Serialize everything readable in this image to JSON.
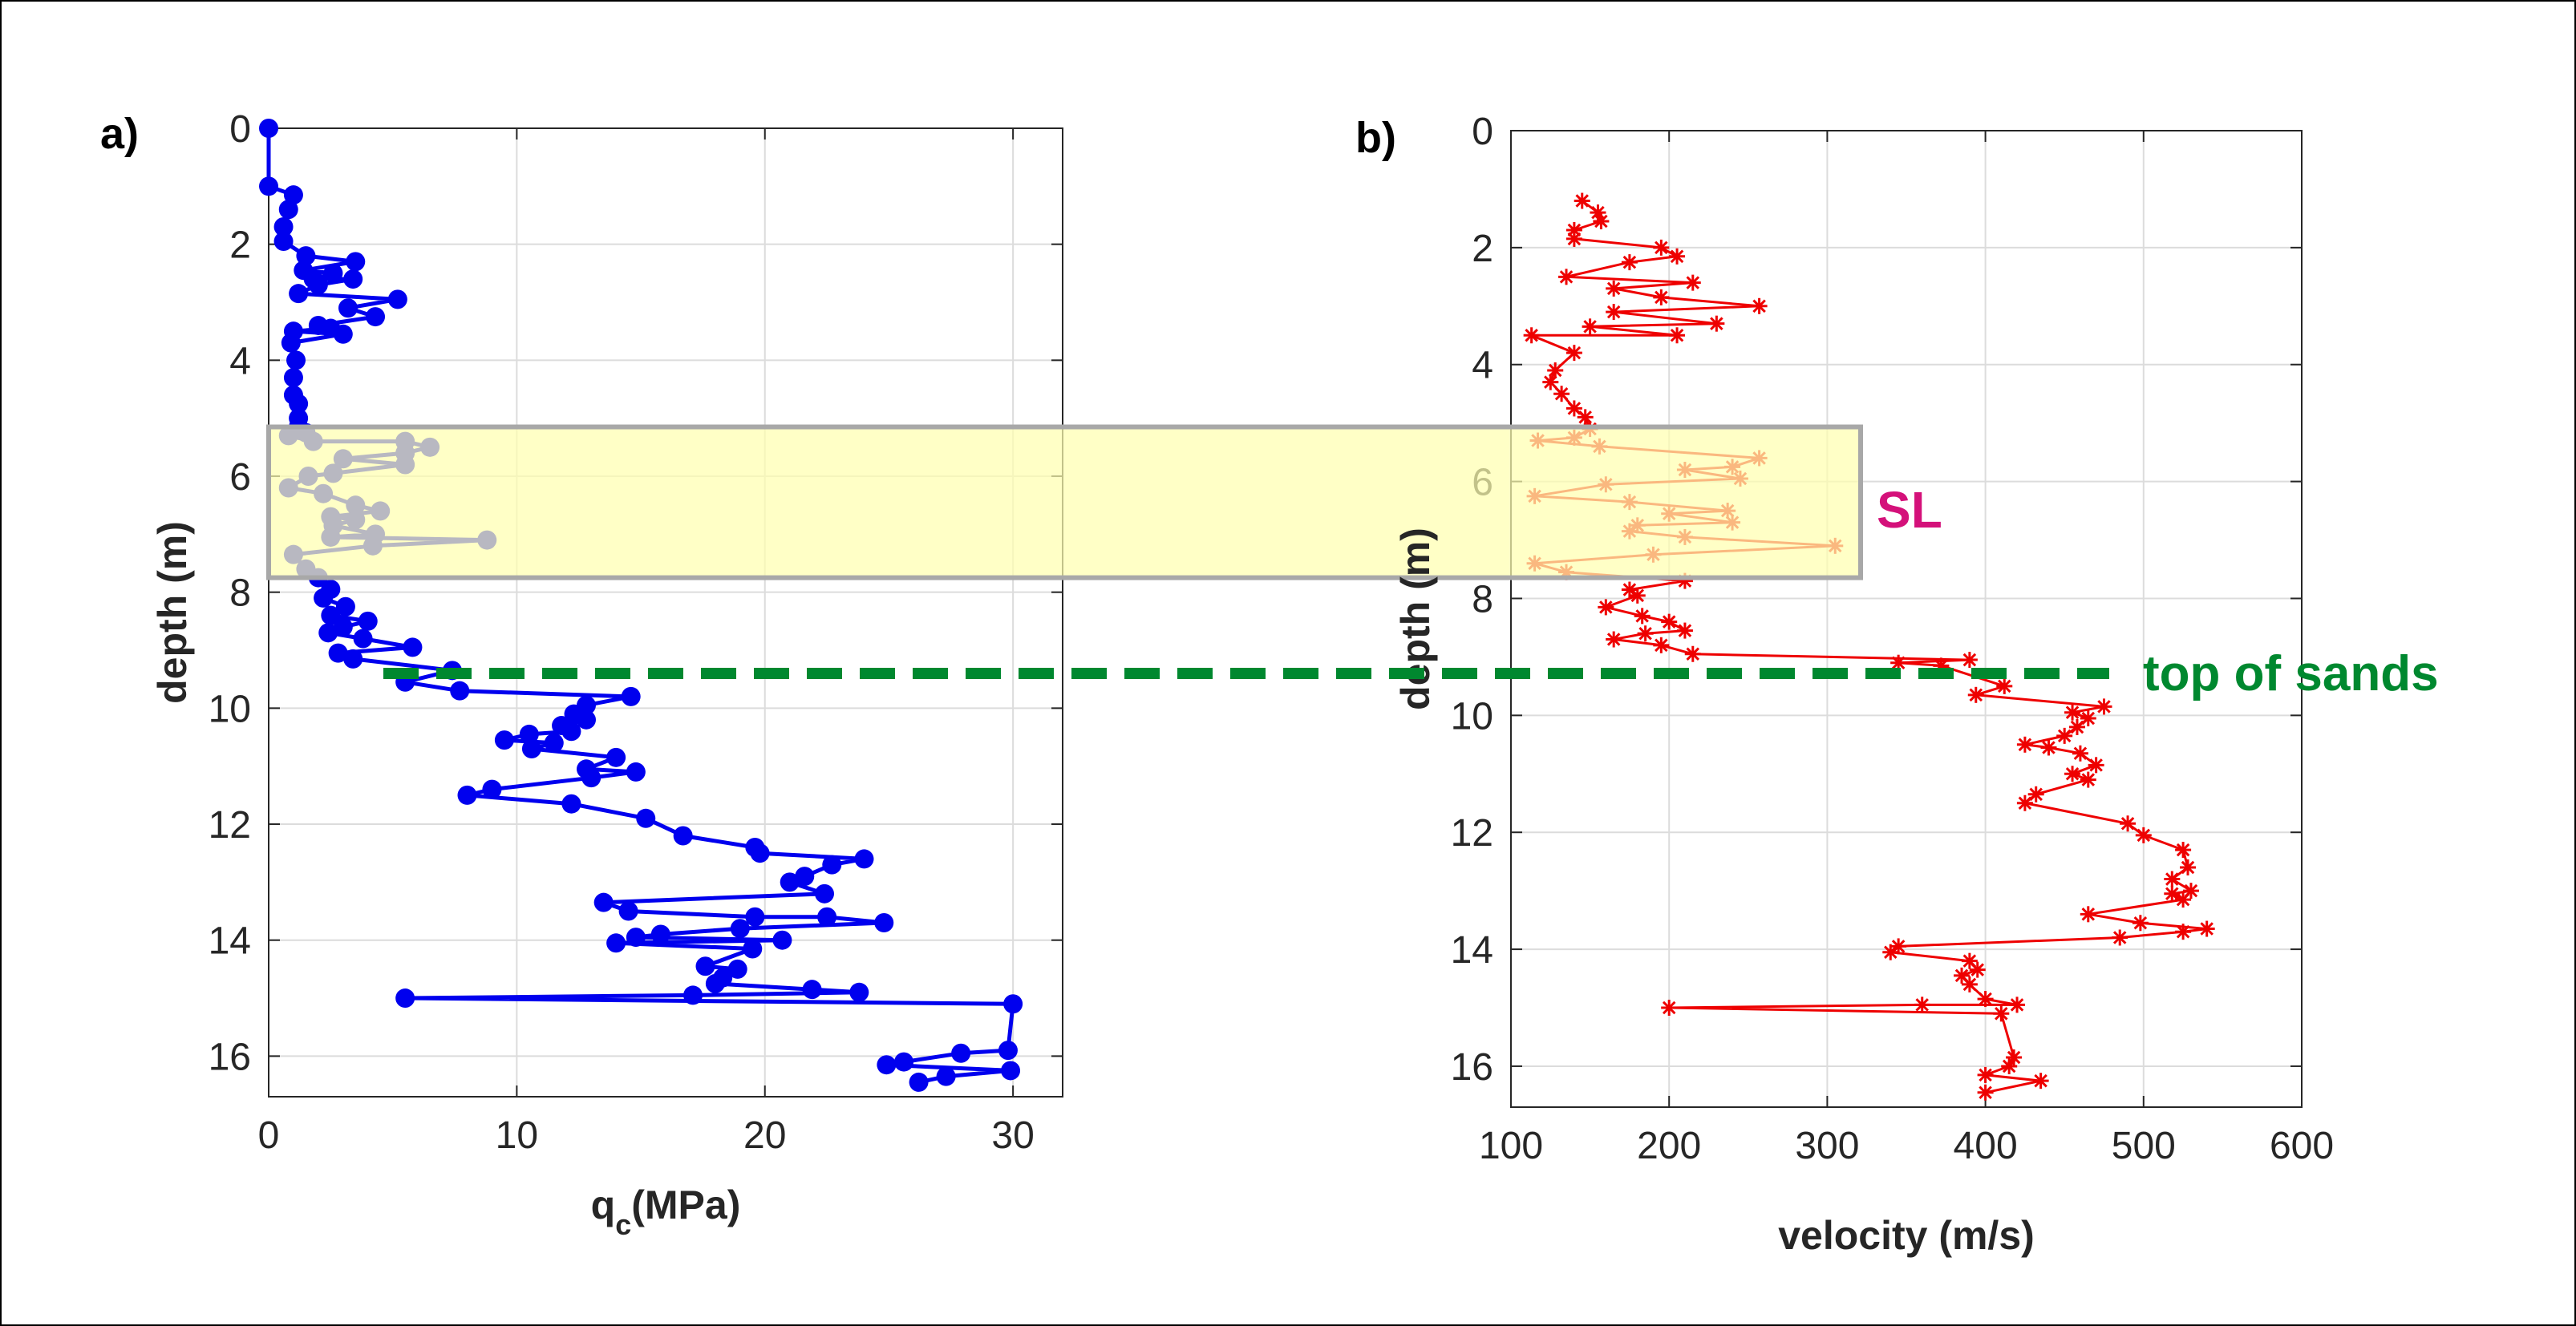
{
  "chart_data": [
    {
      "type": "line",
      "panel_label": "a)",
      "xlabel": "q",
      "xlabel_sub": "c",
      "xlabel_units": "(MPa)",
      "ylabel": "depth (m)",
      "xlim": [
        0,
        32
      ],
      "ylim": [
        0,
        16.7
      ],
      "y_reversed": true,
      "grid": true,
      "xticks": [
        0,
        10,
        20,
        30
      ],
      "yticks": [
        0,
        2,
        4,
        6,
        8,
        10,
        12,
        14,
        16
      ],
      "series": [
        {
          "color": "#0000ee",
          "marker": "circle",
          "points": [
            [
              0.0,
              0.0
            ],
            [
              0.0,
              1.0
            ],
            [
              1.0,
              1.15
            ],
            [
              0.8,
              1.4
            ],
            [
              0.6,
              1.7
            ],
            [
              0.6,
              1.95
            ],
            [
              1.5,
              2.2
            ],
            [
              3.5,
              2.3
            ],
            [
              1.4,
              2.45
            ],
            [
              2.6,
              2.5
            ],
            [
              1.8,
              2.6
            ],
            [
              3.4,
              2.6
            ],
            [
              2.0,
              2.7
            ],
            [
              1.2,
              2.85
            ],
            [
              5.2,
              2.95
            ],
            [
              3.2,
              3.1
            ],
            [
              4.3,
              3.25
            ],
            [
              2.0,
              3.4
            ],
            [
              2.5,
              3.45
            ],
            [
              1.0,
              3.5
            ],
            [
              3.0,
              3.55
            ],
            [
              0.9,
              3.7
            ],
            [
              1.1,
              4.0
            ],
            [
              1.0,
              4.3
            ],
            [
              1.0,
              4.6
            ],
            [
              1.2,
              4.75
            ],
            [
              1.2,
              5.0
            ],
            [
              1.2,
              5.15
            ],
            [
              1.5,
              5.25
            ],
            [
              0.8,
              5.3
            ],
            [
              1.8,
              5.4
            ],
            [
              5.5,
              5.4
            ],
            [
              6.5,
              5.5
            ],
            [
              5.5,
              5.6
            ],
            [
              3.0,
              5.7
            ],
            [
              5.5,
              5.8
            ],
            [
              2.6,
              5.95
            ],
            [
              1.6,
              6.0
            ],
            [
              0.8,
              6.2
            ],
            [
              2.2,
              6.3
            ],
            [
              3.5,
              6.5
            ],
            [
              4.5,
              6.6
            ],
            [
              2.5,
              6.7
            ],
            [
              3.5,
              6.75
            ],
            [
              2.6,
              6.85
            ],
            [
              4.3,
              7.0
            ],
            [
              2.5,
              7.05
            ],
            [
              8.8,
              7.1
            ],
            [
              4.2,
              7.2
            ],
            [
              1.0,
              7.35
            ],
            [
              1.5,
              7.6
            ],
            [
              2.0,
              7.75
            ],
            [
              2.5,
              7.95
            ],
            [
              2.2,
              8.1
            ],
            [
              3.1,
              8.25
            ],
            [
              2.5,
              8.4
            ],
            [
              4.0,
              8.5
            ],
            [
              3.0,
              8.6
            ],
            [
              2.4,
              8.7
            ],
            [
              3.8,
              8.8
            ],
            [
              5.8,
              8.95
            ],
            [
              2.8,
              9.05
            ],
            [
              3.4,
              9.15
            ],
            [
              7.4,
              9.35
            ],
            [
              5.5,
              9.55
            ],
            [
              7.7,
              9.7
            ],
            [
              14.6,
              9.8
            ],
            [
              12.8,
              9.95
            ],
            [
              12.3,
              10.1
            ],
            [
              12.8,
              10.2
            ],
            [
              11.8,
              10.3
            ],
            [
              12.2,
              10.4
            ],
            [
              10.5,
              10.45
            ],
            [
              9.5,
              10.55
            ],
            [
              11.5,
              10.6
            ],
            [
              10.6,
              10.7
            ],
            [
              14.0,
              10.85
            ],
            [
              12.8,
              11.05
            ],
            [
              14.8,
              11.1
            ],
            [
              13.0,
              11.2
            ],
            [
              9.0,
              11.4
            ],
            [
              8.0,
              11.5
            ],
            [
              12.2,
              11.65
            ],
            [
              15.2,
              11.9
            ],
            [
              16.7,
              12.2
            ],
            [
              19.6,
              12.4
            ],
            [
              19.8,
              12.5
            ],
            [
              24.0,
              12.6
            ],
            [
              22.7,
              12.7
            ],
            [
              21.6,
              12.9
            ],
            [
              21.0,
              13.0
            ],
            [
              22.4,
              13.2
            ],
            [
              13.5,
              13.35
            ],
            [
              14.5,
              13.5
            ],
            [
              19.6,
              13.6
            ],
            [
              22.5,
              13.6
            ],
            [
              24.8,
              13.7
            ],
            [
              19.0,
              13.8
            ],
            [
              15.8,
              13.9
            ],
            [
              14.8,
              13.95
            ],
            [
              20.7,
              14.0
            ],
            [
              14.0,
              14.05
            ],
            [
              19.5,
              14.15
            ],
            [
              17.6,
              14.45
            ],
            [
              18.9,
              14.5
            ],
            [
              18.3,
              14.65
            ],
            [
              18.0,
              14.75
            ],
            [
              21.9,
              14.85
            ],
            [
              23.8,
              14.9
            ],
            [
              17.1,
              14.95
            ],
            [
              5.5,
              15.0
            ],
            [
              30.0,
              15.1
            ],
            [
              29.8,
              15.9
            ],
            [
              27.9,
              15.95
            ],
            [
              25.6,
              16.1
            ],
            [
              24.9,
              16.15
            ],
            [
              29.9,
              16.25
            ],
            [
              27.3,
              16.35
            ],
            [
              26.2,
              16.45
            ]
          ]
        }
      ]
    },
    {
      "type": "line",
      "panel_label": "b)",
      "xlabel": "velocity (m/s)",
      "ylabel": "depth (m)",
      "xlim": [
        100,
        600
      ],
      "ylim": [
        0,
        16.7
      ],
      "y_reversed": true,
      "grid": true,
      "xticks": [
        100,
        200,
        300,
        400,
        500,
        600
      ],
      "yticks": [
        0,
        2,
        4,
        6,
        8,
        10,
        12,
        14,
        16
      ],
      "series": [
        {
          "color": "#ee0000",
          "marker": "asterisk",
          "points": [
            [
              145,
              1.2
            ],
            [
              155,
              1.4
            ],
            [
              157,
              1.55
            ],
            [
              140,
              1.7
            ],
            [
              140,
              1.85
            ],
            [
              195,
              2.0
            ],
            [
              205,
              2.15
            ],
            [
              175,
              2.25
            ],
            [
              135,
              2.5
            ],
            [
              215,
              2.6
            ],
            [
              165,
              2.7
            ],
            [
              195,
              2.85
            ],
            [
              257,
              3.0
            ],
            [
              165,
              3.1
            ],
            [
              230,
              3.3
            ],
            [
              150,
              3.35
            ],
            [
              205,
              3.5
            ],
            [
              113,
              3.5
            ],
            [
              140,
              3.8
            ],
            [
              128,
              4.1
            ],
            [
              125,
              4.3
            ],
            [
              132,
              4.5
            ],
            [
              140,
              4.75
            ],
            [
              147,
              4.9
            ],
            [
              150,
              5.1
            ],
            [
              140,
              5.25
            ],
            [
              117,
              5.3
            ],
            [
              156,
              5.4
            ],
            [
              257,
              5.6
            ],
            [
              240,
              5.75
            ],
            [
              210,
              5.8
            ],
            [
              245,
              5.95
            ],
            [
              160,
              6.05
            ],
            [
              115,
              6.25
            ],
            [
              175,
              6.35
            ],
            [
              237,
              6.5
            ],
            [
              200,
              6.55
            ],
            [
              240,
              6.7
            ],
            [
              180,
              6.75
            ],
            [
              175,
              6.85
            ],
            [
              210,
              6.95
            ],
            [
              305,
              7.1
            ],
            [
              190,
              7.25
            ],
            [
              115,
              7.4
            ],
            [
              135,
              7.55
            ],
            [
              210,
              7.7
            ],
            [
              175,
              7.85
            ],
            [
              180,
              7.95
            ],
            [
              160,
              8.15
            ],
            [
              183,
              8.3
            ],
            [
              200,
              8.4
            ],
            [
              210,
              8.55
            ],
            [
              185,
              8.6
            ],
            [
              165,
              8.7
            ],
            [
              195,
              8.8
            ],
            [
              215,
              8.95
            ],
            [
              390,
              9.05
            ],
            [
              345,
              9.1
            ],
            [
              372,
              9.15
            ],
            [
              412,
              9.5
            ],
            [
              394,
              9.65
            ],
            [
              475,
              9.85
            ],
            [
              455,
              9.95
            ],
            [
              465,
              10.05
            ],
            [
              458,
              10.2
            ],
            [
              450,
              10.35
            ],
            [
              425,
              10.5
            ],
            [
              440,
              10.55
            ],
            [
              460,
              10.65
            ],
            [
              470,
              10.85
            ],
            [
              455,
              11.0
            ],
            [
              465,
              11.1
            ],
            [
              432,
              11.35
            ],
            [
              425,
              11.5
            ],
            [
              490,
              11.85
            ],
            [
              500,
              12.05
            ],
            [
              525,
              12.3
            ],
            [
              528,
              12.6
            ],
            [
              518,
              12.8
            ],
            [
              530,
              13.0
            ],
            [
              518,
              13.05
            ],
            [
              525,
              13.15
            ],
            [
              465,
              13.4
            ],
            [
              498,
              13.55
            ],
            [
              540,
              13.65
            ],
            [
              525,
              13.7
            ],
            [
              485,
              13.8
            ],
            [
              345,
              13.95
            ],
            [
              340,
              14.05
            ],
            [
              390,
              14.2
            ],
            [
              395,
              14.35
            ],
            [
              385,
              14.45
            ],
            [
              390,
              14.6
            ],
            [
              400,
              14.85
            ],
            [
              420,
              14.95
            ],
            [
              360,
              14.95
            ],
            [
              200,
              15.0
            ],
            [
              410,
              15.1
            ],
            [
              418,
              15.85
            ],
            [
              415,
              16.0
            ],
            [
              400,
              16.15
            ],
            [
              435,
              16.25
            ],
            [
              400,
              16.45
            ]
          ]
        }
      ]
    }
  ],
  "annotations": {
    "sl_label": "SL",
    "sl_color": "#d4117a",
    "sl_box_fill": "#ffffb0",
    "sl_box_edge": "#a8a8a8",
    "sl_depth_range": [
      5.15,
      7.75
    ],
    "sands_label": "top of sands",
    "sands_color": "#00882f",
    "sands_depth": 9.4
  }
}
